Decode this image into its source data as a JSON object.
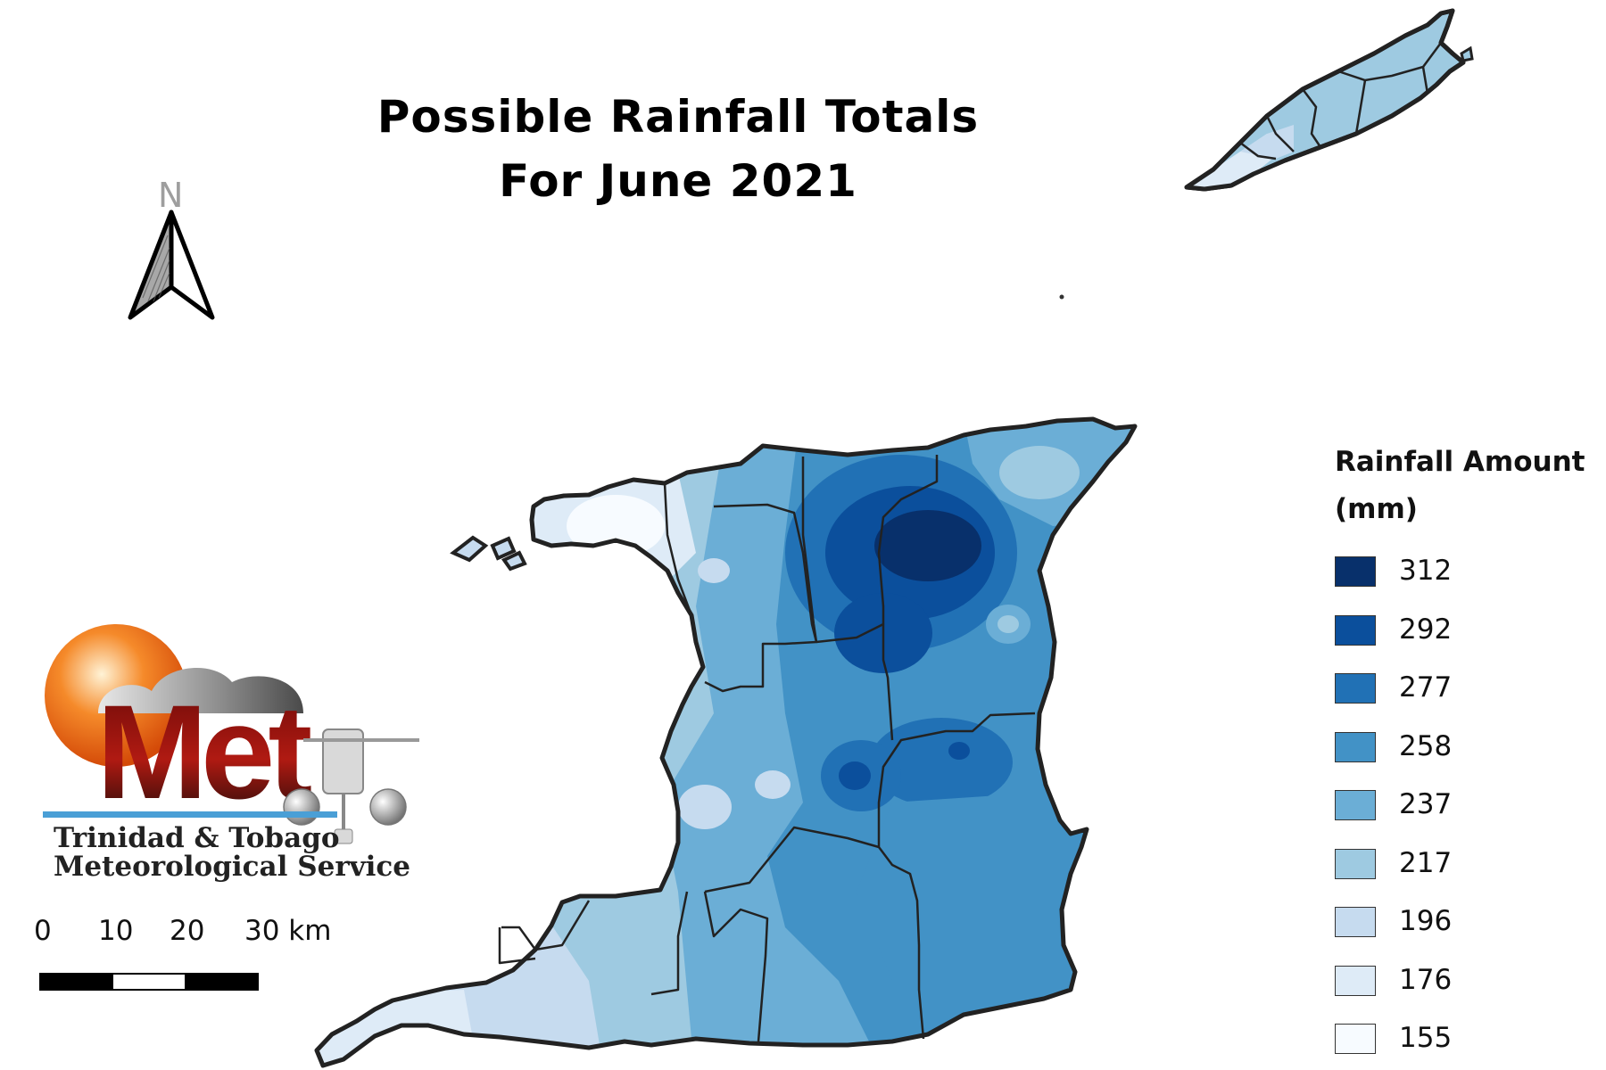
{
  "title": {
    "line1": "Possible Rainfall Totals",
    "line2": "For June 2021"
  },
  "north_arrow": {
    "letter": "N",
    "icon": "north-arrow-icon"
  },
  "legend": {
    "title_line1": "Rainfall Amount",
    "title_line2": "(mm)",
    "items": [
      {
        "label": "312",
        "color": "#08306b"
      },
      {
        "label": "292",
        "color": "#0b4f9c"
      },
      {
        "label": "277",
        "color": "#2171b5"
      },
      {
        "label": "258",
        "color": "#4292c6"
      },
      {
        "label": "237",
        "color": "#6baed6"
      },
      {
        "label": "217",
        "color": "#9ecae1"
      },
      {
        "label": "196",
        "color": "#c6dbef"
      },
      {
        "label": "176",
        "color": "#deebf7"
      },
      {
        "label": "155",
        "color": "#f7fbff"
      }
    ]
  },
  "scale_bar": {
    "labels": [
      "0",
      "10",
      "20",
      "30 km"
    ]
  },
  "logo": {
    "wordmark": "Met",
    "line1": "Trinidad & Tobago",
    "line2": "Meteorological Service"
  }
}
